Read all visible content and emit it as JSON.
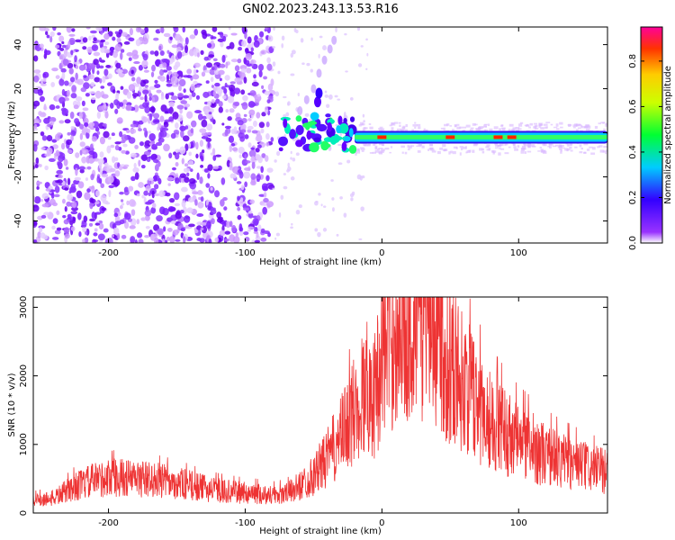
{
  "title": "GN02.2023.243.13.53.R16",
  "chart_data": [
    {
      "type": "heatmap",
      "xlabel": "Height of straight line (km)",
      "ylabel": "Frequency (Hz)",
      "xlim": [
        -255,
        165
      ],
      "ylim": [
        -50,
        48
      ],
      "x_ticks": [
        -200,
        -100,
        0,
        100
      ],
      "y_ticks": [
        -40,
        -20,
        0,
        20,
        40
      ],
      "colorbar": {
        "label": "Normalized spectral amplitude",
        "range": [
          0,
          0.95
        ],
        "ticks": [
          0.0,
          0.2,
          0.4,
          0.6,
          0.8
        ],
        "colormap": "rainbow"
      },
      "features": {
        "noise_region_x": [
          -255,
          -80
        ],
        "carrier_x": [
          -20,
          165
        ],
        "carrier_frequency": -2,
        "scatter_x": [
          -80,
          -20
        ],
        "peak_points_x": [
          0,
          50,
          85,
          95
        ]
      }
    },
    {
      "type": "line",
      "xlabel": "Height of straight line (km)",
      "ylabel": "SNR (10 * v/v)",
      "xlim": [
        -255,
        165
      ],
      "ylim": [
        0,
        3150
      ],
      "x_ticks": [
        -200,
        -100,
        0,
        100
      ],
      "y_ticks": [
        0,
        1000,
        2000,
        3000
      ],
      "series": [
        {
          "color": "#ee3333",
          "x": [
            -255,
            -240,
            -225,
            -210,
            -195,
            -180,
            -165,
            -150,
            -135,
            -120,
            -105,
            -90,
            -80,
            -70,
            -60,
            -50,
            -40,
            -30,
            -20,
            -15,
            -10,
            -5,
            0,
            5,
            10,
            15,
            20,
            25,
            30,
            35,
            40,
            45,
            50,
            60,
            70,
            80,
            90,
            100,
            110,
            120,
            130,
            140,
            150,
            165
          ],
          "y": [
            180,
            220,
            380,
            480,
            520,
            500,
            480,
            440,
            380,
            330,
            300,
            280,
            260,
            280,
            400,
            550,
            800,
            1100,
            1500,
            1700,
            1900,
            1700,
            2400,
            2550,
            2700,
            2800,
            2880,
            2920,
            2950,
            2900,
            2700,
            2400,
            2200,
            1900,
            1600,
            1350,
            1200,
            1050,
            950,
            850,
            780,
            720,
            660,
            600
          ]
        }
      ]
    }
  ]
}
